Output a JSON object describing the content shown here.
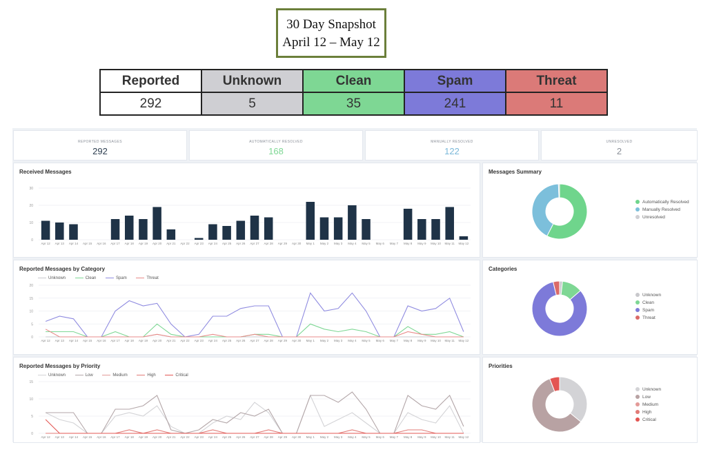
{
  "header": {
    "title_line1": "30 Day Snapshot",
    "title_line2": "April 12 – May 12"
  },
  "summary_table": {
    "columns": [
      {
        "label": "Reported",
        "value": "292",
        "color": "#ffffff"
      },
      {
        "label": "Unknown",
        "value": "5",
        "color": "#cfcfd3"
      },
      {
        "label": "Clean",
        "value": "35",
        "color": "#7ed794"
      },
      {
        "label": "Spam",
        "value": "241",
        "color": "#7d7ad9"
      },
      {
        "label": "Threat",
        "value": "11",
        "color": "#db7a78"
      }
    ]
  },
  "stats": [
    {
      "label": "REPORTED MESSAGES",
      "value": "292",
      "color": "#2d3e50"
    },
    {
      "label": "AUTOMATICALLY RESOLVED",
      "value": "168",
      "color": "#7ed794"
    },
    {
      "label": "MANUALLY RESOLVED",
      "value": "122",
      "color": "#7ab8d9"
    },
    {
      "label": "UNRESOLVED",
      "value": "2",
      "color": "#8a8f98"
    }
  ],
  "x_labels": [
    "Apr 12",
    "Apr 13",
    "Apr 14",
    "Apr 15",
    "Apr 16",
    "Apr 17",
    "Apr 18",
    "Apr 19",
    "Apr 20",
    "Apr 21",
    "Apr 22",
    "Apr 23",
    "Apr 24",
    "Apr 25",
    "Apr 26",
    "Apr 27",
    "Apr 28",
    "Apr 29",
    "Apr 30",
    "May 1",
    "May 2",
    "May 3",
    "May 4",
    "May 5",
    "May 6",
    "May 7",
    "May 8",
    "May 9",
    "May 10",
    "May 11",
    "May 12"
  ],
  "received": {
    "title": "Received Messages",
    "yticks": [
      0,
      10,
      20,
      30
    ],
    "ymax": 30,
    "color": "#1f3347",
    "values": [
      11,
      10,
      9,
      0,
      0,
      12,
      14,
      12,
      19,
      6,
      0,
      1,
      9,
      8,
      11,
      14,
      13,
      0,
      0,
      22,
      13,
      13,
      20,
      12,
      0,
      0,
      18,
      12,
      12,
      19,
      2
    ]
  },
  "category_chart": {
    "title": "Reported Messages by Category",
    "yticks": [
      0,
      5,
      10,
      15,
      20
    ],
    "ymax": 20,
    "series": [
      {
        "name": "Unknown",
        "color": "#c8c8cc",
        "values": [
          0,
          0,
          0,
          0,
          0,
          0,
          0,
          0,
          1,
          0,
          0,
          0,
          0,
          0,
          0,
          0,
          0,
          0,
          0,
          0,
          0,
          0,
          0,
          0,
          0,
          0,
          0,
          0,
          0,
          0,
          0
        ]
      },
      {
        "name": "Clean",
        "color": "#7ed794",
        "values": [
          2,
          2,
          2,
          0,
          0,
          2,
          0,
          0,
          5,
          1,
          0,
          0,
          0,
          0,
          0,
          1,
          1,
          0,
          0,
          5,
          3,
          2,
          3,
          2,
          0,
          0,
          4,
          1,
          1,
          2,
          0
        ]
      },
      {
        "name": "Spam",
        "color": "#8f8be0",
        "values": [
          6,
          8,
          7,
          0,
          0,
          10,
          14,
          12,
          13,
          5,
          0,
          1,
          8,
          8,
          11,
          12,
          12,
          0,
          0,
          17,
          10,
          11,
          17,
          10,
          0,
          0,
          12,
          10,
          11,
          15,
          2
        ]
      },
      {
        "name": "Threat",
        "color": "#e88a88",
        "values": [
          3,
          0,
          0,
          0,
          0,
          0,
          0,
          0,
          1,
          0,
          0,
          0,
          1,
          0,
          0,
          1,
          0,
          0,
          0,
          0,
          0,
          0,
          0,
          0,
          0,
          0,
          2,
          1,
          0,
          0,
          0
        ]
      }
    ]
  },
  "priority_chart": {
    "title": "Reported Messages by Priority",
    "yticks": [
      0,
      5,
      10,
      15
    ],
    "ymax": 15,
    "series": [
      {
        "name": "Unknown",
        "color": "#d3d3d6",
        "values": [
          6,
          4,
          3,
          0,
          0,
          5,
          6,
          5,
          8,
          2,
          0,
          0,
          3,
          5,
          4,
          9,
          6,
          0,
          0,
          11,
          2,
          4,
          6,
          3,
          0,
          0,
          6,
          4,
          3,
          8,
          0
        ]
      },
      {
        "name": "Low",
        "color": "#b3a6a8",
        "values": [
          6,
          6,
          6,
          0,
          0,
          7,
          7,
          8,
          11,
          1,
          0,
          1,
          4,
          3,
          6,
          5,
          7,
          0,
          0,
          11,
          11,
          9,
          12,
          7,
          0,
          0,
          11,
          8,
          7,
          11,
          2
        ]
      },
      {
        "name": "Medium",
        "color": "#e39a98",
        "values": [
          0,
          0,
          0,
          0,
          0,
          0,
          0,
          0,
          0,
          0,
          0,
          0,
          0,
          0,
          0,
          0,
          0,
          0,
          0,
          0,
          0,
          0,
          0,
          0,
          0,
          0,
          0,
          0,
          0,
          0,
          0
        ]
      },
      {
        "name": "High",
        "color": "#e17a76",
        "values": [
          0,
          0,
          0,
          0,
          0,
          0,
          1,
          0,
          1,
          0,
          0,
          0,
          1,
          0,
          0,
          0,
          1,
          0,
          0,
          0,
          0,
          0,
          1,
          0,
          0,
          0,
          1,
          1,
          0,
          0,
          0
        ]
      },
      {
        "name": "Critical",
        "color": "#e35552",
        "values": [
          4,
          0,
          0,
          0,
          0,
          0,
          0,
          0,
          0,
          0,
          0,
          0,
          0,
          0,
          0,
          0,
          0,
          0,
          0,
          0,
          0,
          0,
          0,
          0,
          0,
          0,
          0,
          0,
          0,
          0,
          0
        ]
      }
    ]
  },
  "messages_summary": {
    "title": "Messages Summary",
    "slices": [
      {
        "name": "Automatically Resolved",
        "value": 168,
        "color": "#6fd58c"
      },
      {
        "name": "Manually Resolved",
        "value": 122,
        "color": "#7cbfdb"
      },
      {
        "name": "Unresolved",
        "value": 2,
        "color": "#cfcfd3"
      }
    ]
  },
  "categories_donut": {
    "title": "Categories",
    "slices": [
      {
        "name": "Unknown",
        "value": 5,
        "color": "#c8c8cc"
      },
      {
        "name": "Clean",
        "value": 35,
        "color": "#7ed794"
      },
      {
        "name": "Spam",
        "value": 241,
        "color": "#7d7ad9"
      },
      {
        "name": "Threat",
        "value": 11,
        "color": "#db6a68"
      }
    ]
  },
  "priorities_donut": {
    "title": "Priorities",
    "slices": [
      {
        "name": "Unknown",
        "value": 105,
        "color": "#d3d3d6"
      },
      {
        "name": "Low",
        "value": 170,
        "color": "#b8a2a3"
      },
      {
        "name": "Medium",
        "value": 0,
        "color": "#e39a98"
      },
      {
        "name": "High",
        "value": 0,
        "color": "#e17a76"
      },
      {
        "name": "Critical",
        "value": 17,
        "color": "#e35552"
      }
    ]
  },
  "chart_data": [
    {
      "type": "bar",
      "title": "Received Messages",
      "categories": [
        "Apr 12",
        "Apr 13",
        "Apr 14",
        "Apr 15",
        "Apr 16",
        "Apr 17",
        "Apr 18",
        "Apr 19",
        "Apr 20",
        "Apr 21",
        "Apr 22",
        "Apr 23",
        "Apr 24",
        "Apr 25",
        "Apr 26",
        "Apr 27",
        "Apr 28",
        "Apr 29",
        "Apr 30",
        "May 1",
        "May 2",
        "May 3",
        "May 4",
        "May 5",
        "May 6",
        "May 7",
        "May 8",
        "May 9",
        "May 10",
        "May 11",
        "May 12"
      ],
      "values": [
        11,
        10,
        9,
        0,
        0,
        12,
        14,
        12,
        19,
        6,
        0,
        1,
        9,
        8,
        11,
        14,
        13,
        0,
        0,
        22,
        13,
        13,
        20,
        12,
        0,
        0,
        18,
        12,
        12,
        19,
        2
      ],
      "ylim": [
        0,
        30
      ]
    },
    {
      "type": "line",
      "title": "Reported Messages by Category",
      "series_names": [
        "Unknown",
        "Clean",
        "Spam",
        "Threat"
      ],
      "ylim": [
        0,
        20
      ]
    },
    {
      "type": "line",
      "title": "Reported Messages by Priority",
      "series_names": [
        "Unknown",
        "Low",
        "Medium",
        "High",
        "Critical"
      ],
      "ylim": [
        0,
        15
      ]
    },
    {
      "type": "pie",
      "title": "Messages Summary",
      "categories": [
        "Automatically Resolved",
        "Manually Resolved",
        "Unresolved"
      ],
      "values": [
        168,
        122,
        2
      ]
    },
    {
      "type": "pie",
      "title": "Categories",
      "categories": [
        "Unknown",
        "Clean",
        "Spam",
        "Threat"
      ],
      "values": [
        5,
        35,
        241,
        11
      ]
    },
    {
      "type": "pie",
      "title": "Priorities",
      "categories": [
        "Unknown",
        "Low",
        "Medium",
        "High",
        "Critical"
      ],
      "values": [
        105,
        170,
        0,
        0,
        17
      ]
    }
  ]
}
